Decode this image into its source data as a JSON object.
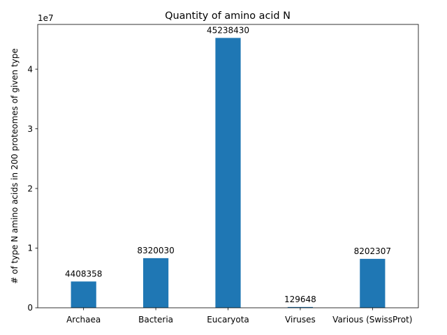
{
  "chart_data": {
    "type": "bar",
    "title": "Quantity of amino acid N",
    "xlabel": "",
    "ylabel": "# of type N amino acids in 200 proteomes of given type",
    "y_offset_label": "1e7",
    "categories": [
      "Archaea",
      "Bacteria",
      "Eucaryota",
      "Viruses",
      "Various (SwissProt)"
    ],
    "values": [
      4408358,
      8320030,
      45238430,
      129648,
      8202307
    ],
    "data_labels": [
      "4408358",
      "8320030",
      "45238430",
      "129648",
      "8202307"
    ],
    "ylim": [
      0,
      47500000
    ],
    "yticks": [
      0,
      10000000,
      20000000,
      30000000,
      40000000
    ],
    "ytick_labels": [
      "0",
      "1",
      "2",
      "3",
      "4"
    ],
    "grid": false,
    "bar_color": "#1f77b4"
  }
}
